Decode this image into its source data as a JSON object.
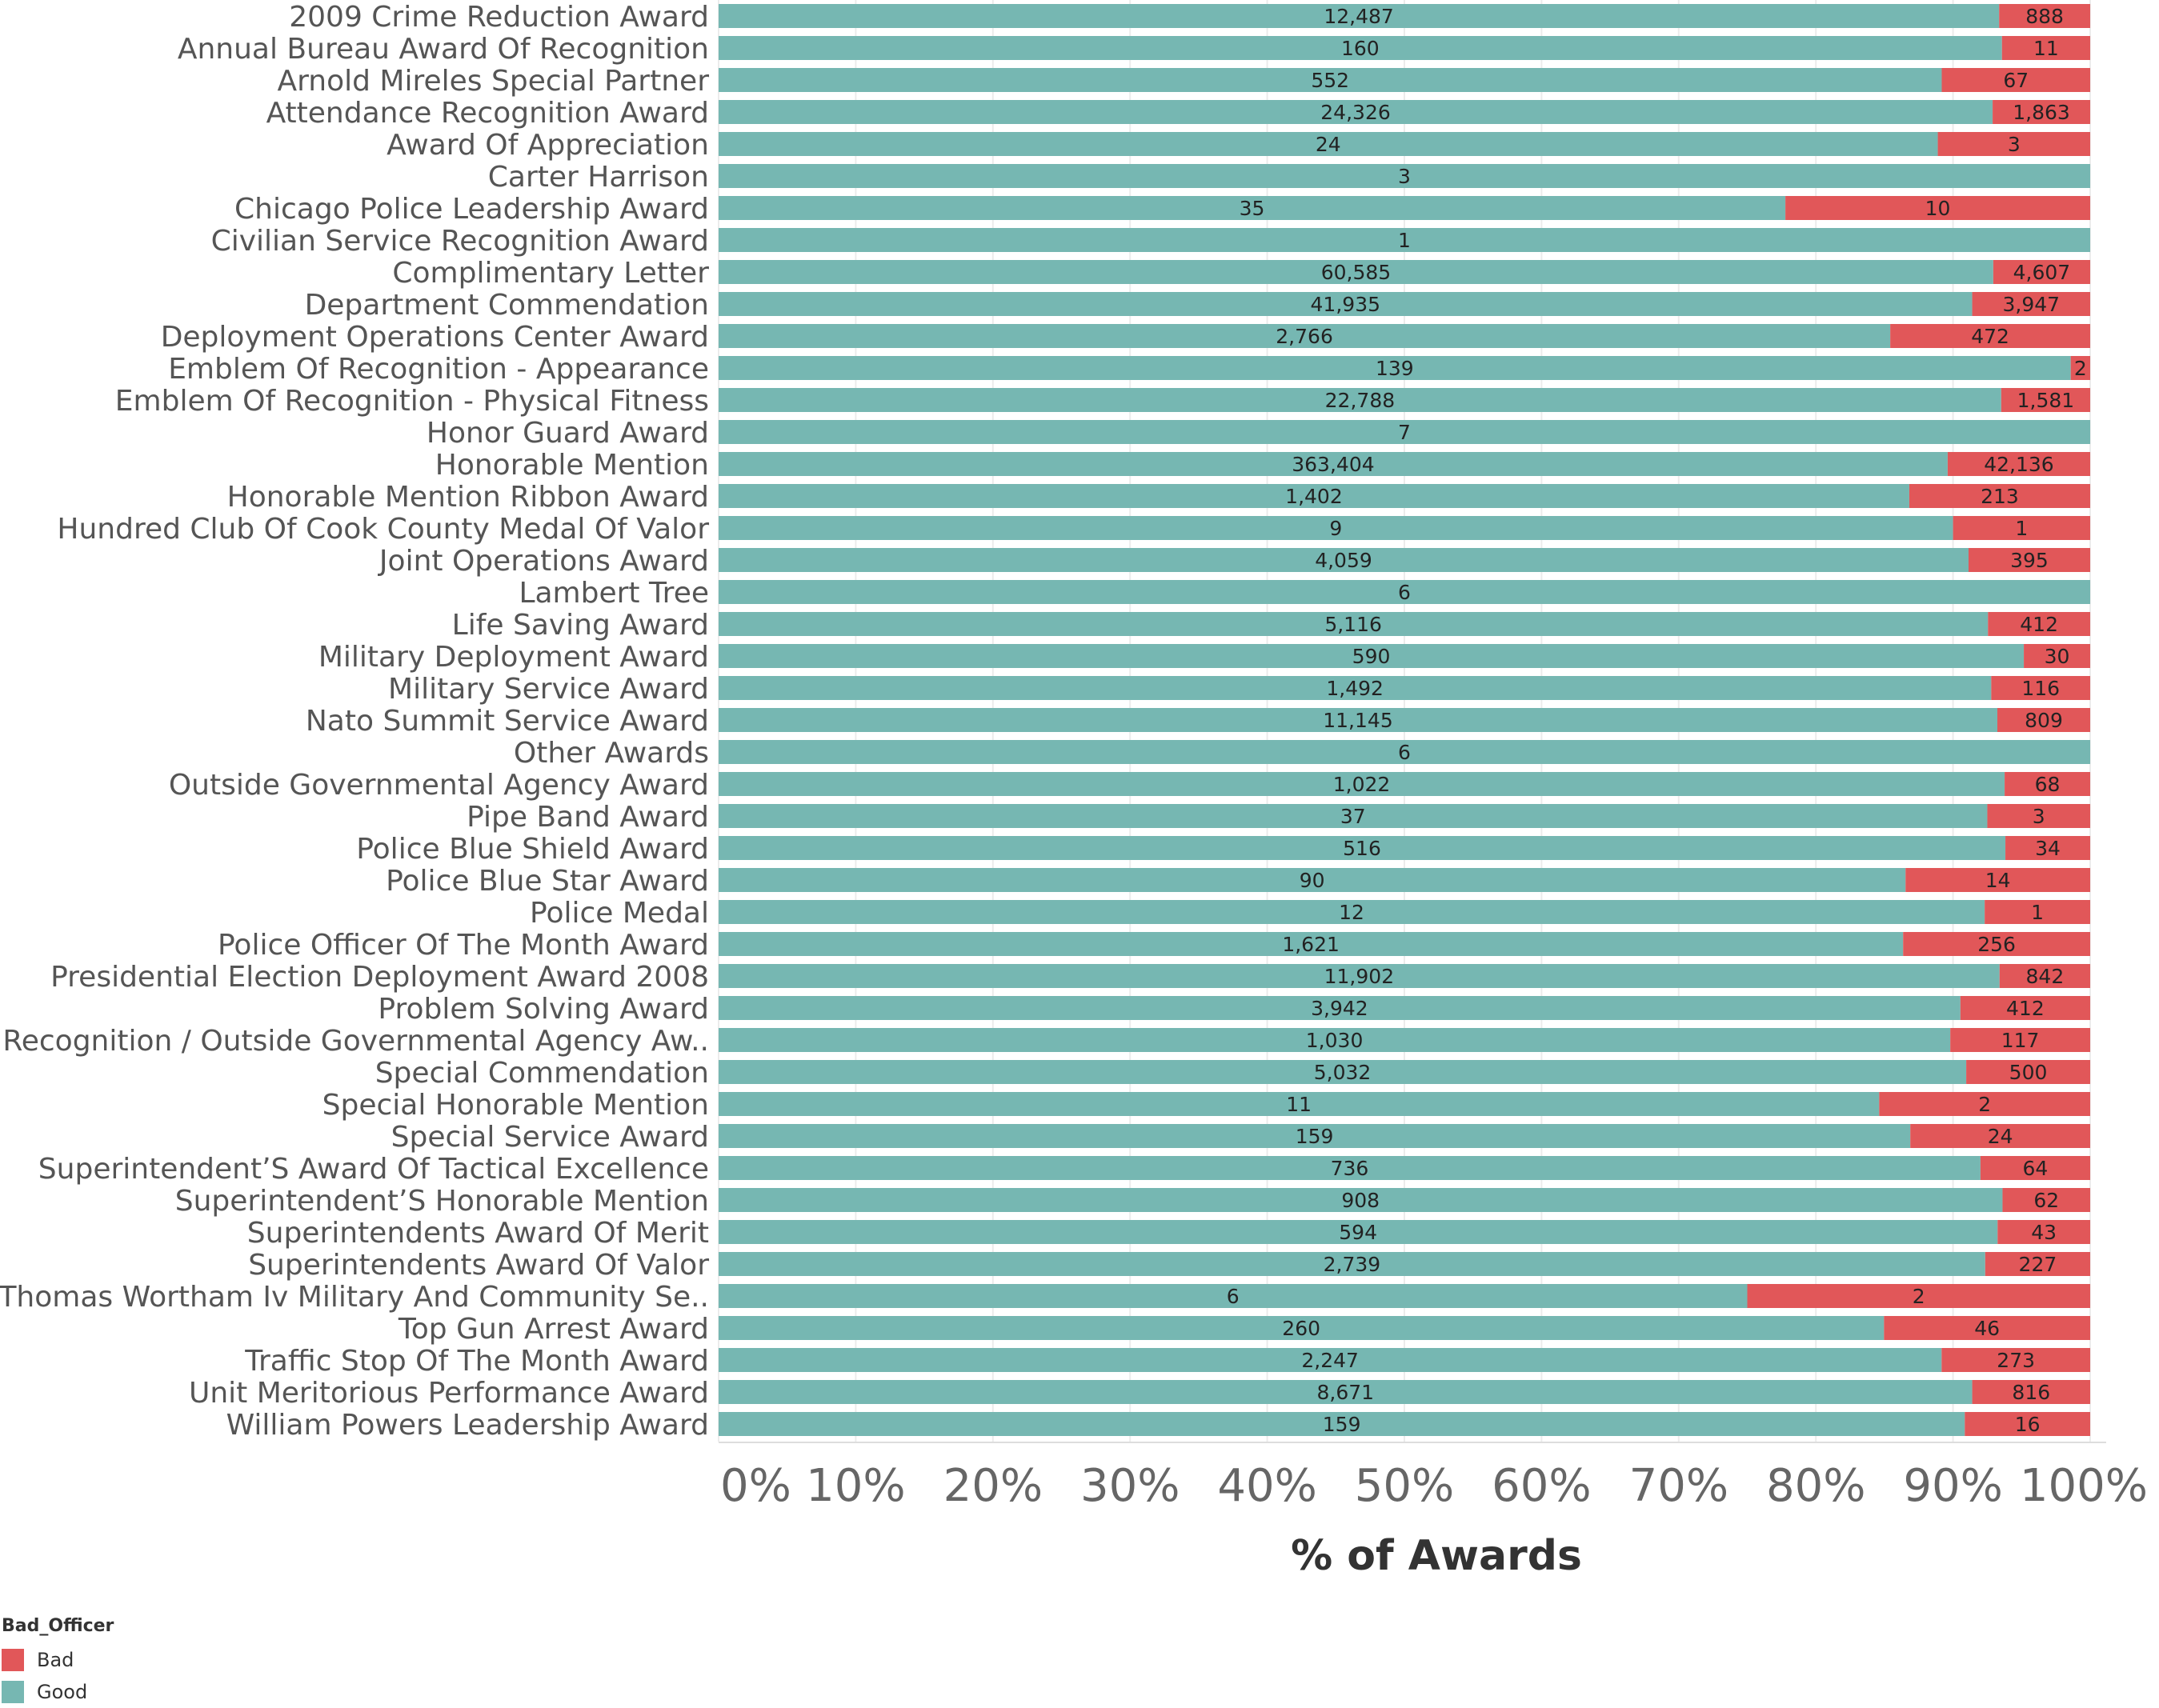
{
  "colors": {
    "good": "#76b7b2",
    "bad": "#e15759"
  },
  "chart_data": {
    "type": "bar",
    "orientation": "horizontal",
    "stacked": "percent",
    "xlabel": "% of Awards",
    "xlim": [
      0,
      100
    ],
    "x_ticks": [
      "0%",
      "10%",
      "20%",
      "30%",
      "40%",
      "50%",
      "60%",
      "70%",
      "80%",
      "90%",
      "100%"
    ],
    "legend": {
      "title": "Bad_Officer",
      "placement": "bottom-left",
      "entries": [
        "Bad",
        "Good"
      ]
    },
    "categories": [
      "2009 Crime Reduction Award",
      "Annual Bureau Award Of Recognition",
      "Arnold Mireles Special Partner",
      "Attendance Recognition Award",
      "Award Of Appreciation",
      "Carter Harrison",
      "Chicago Police Leadership Award",
      "Civilian Service Recognition Award",
      "Complimentary Letter",
      "Department Commendation",
      "Deployment Operations Center Award",
      "Emblem Of Recognition - Appearance",
      "Emblem Of Recognition - Physical Fitness",
      "Honor Guard Award",
      "Honorable Mention",
      "Honorable Mention Ribbon Award",
      "Hundred Club Of Cook County Medal Of Valor",
      "Joint Operations Award",
      "Lambert Tree",
      "Life Saving Award",
      "Military Deployment Award",
      "Military Service Award",
      "Nato Summit Service Award",
      "Other Awards",
      "Outside Governmental Agency Award",
      "Pipe Band Award",
      "Police Blue Shield Award",
      "Police Blue Star Award",
      "Police Medal",
      "Police Officer Of The Month Award",
      "Presidential Election Deployment Award 2008",
      "Problem Solving Award",
      "Recognition / Outside Governmental Agency Aw..",
      "Special Commendation",
      "Special Honorable Mention",
      "Special Service Award",
      "Superintendent’S Award Of Tactical Excellence",
      "Superintendent’S Honorable Mention",
      "Superintendents Award Of Merit",
      "Superintendents Award Of Valor",
      "Thomas Wortham Iv Military And Community Se..",
      "Top Gun Arrest Award",
      "Traffic Stop Of The Month Award",
      "Unit Meritorious Performance Award",
      "William Powers Leadership Award"
    ],
    "series": [
      {
        "name": "Good",
        "values": [
          12487,
          160,
          552,
          24326,
          24,
          3,
          35,
          1,
          60585,
          41935,
          2766,
          139,
          22788,
          7,
          363404,
          1402,
          9,
          4059,
          6,
          5116,
          590,
          1492,
          11145,
          6,
          1022,
          37,
          516,
          90,
          12,
          1621,
          11902,
          3942,
          1030,
          5032,
          11,
          159,
          736,
          908,
          594,
          2739,
          6,
          260,
          2247,
          8671,
          159
        ],
        "labels": [
          "12,487",
          "160",
          "552",
          "24,326",
          "24",
          "3",
          "35",
          "1",
          "60,585",
          "41,935",
          "2,766",
          "139",
          "22,788",
          "7",
          "363,404",
          "1,402",
          "9",
          "4,059",
          "6",
          "5,116",
          "590",
          "1,492",
          "11,145",
          "6",
          "1,022",
          "37",
          "516",
          "90",
          "12",
          "1,621",
          "11,902",
          "3,942",
          "1,030",
          "5,032",
          "11",
          "159",
          "736",
          "908",
          "594",
          "2,739",
          "6",
          "260",
          "2,247",
          "8,671",
          "159"
        ]
      },
      {
        "name": "Bad",
        "values": [
          888,
          11,
          67,
          1863,
          3,
          0,
          10,
          0,
          4607,
          3947,
          472,
          2,
          1581,
          0,
          42136,
          213,
          1,
          395,
          0,
          412,
          30,
          116,
          809,
          0,
          68,
          3,
          34,
          14,
          1,
          256,
          842,
          412,
          117,
          500,
          2,
          24,
          64,
          62,
          43,
          227,
          2,
          46,
          273,
          816,
          16
        ],
        "labels": [
          "888",
          "11",
          "67",
          "1,863",
          "3",
          "",
          "10",
          "",
          "4,607",
          "3,947",
          "472",
          "2",
          "1,581",
          "",
          "42,136",
          "213",
          "1",
          "395",
          "",
          "412",
          "30",
          "116",
          "809",
          "",
          "68",
          "3",
          "34",
          "14",
          "1",
          "256",
          "842",
          "412",
          "117",
          "500",
          "2",
          "24",
          "64",
          "62",
          "43",
          "227",
          "2",
          "46",
          "273",
          "816",
          "16"
        ]
      }
    ]
  }
}
